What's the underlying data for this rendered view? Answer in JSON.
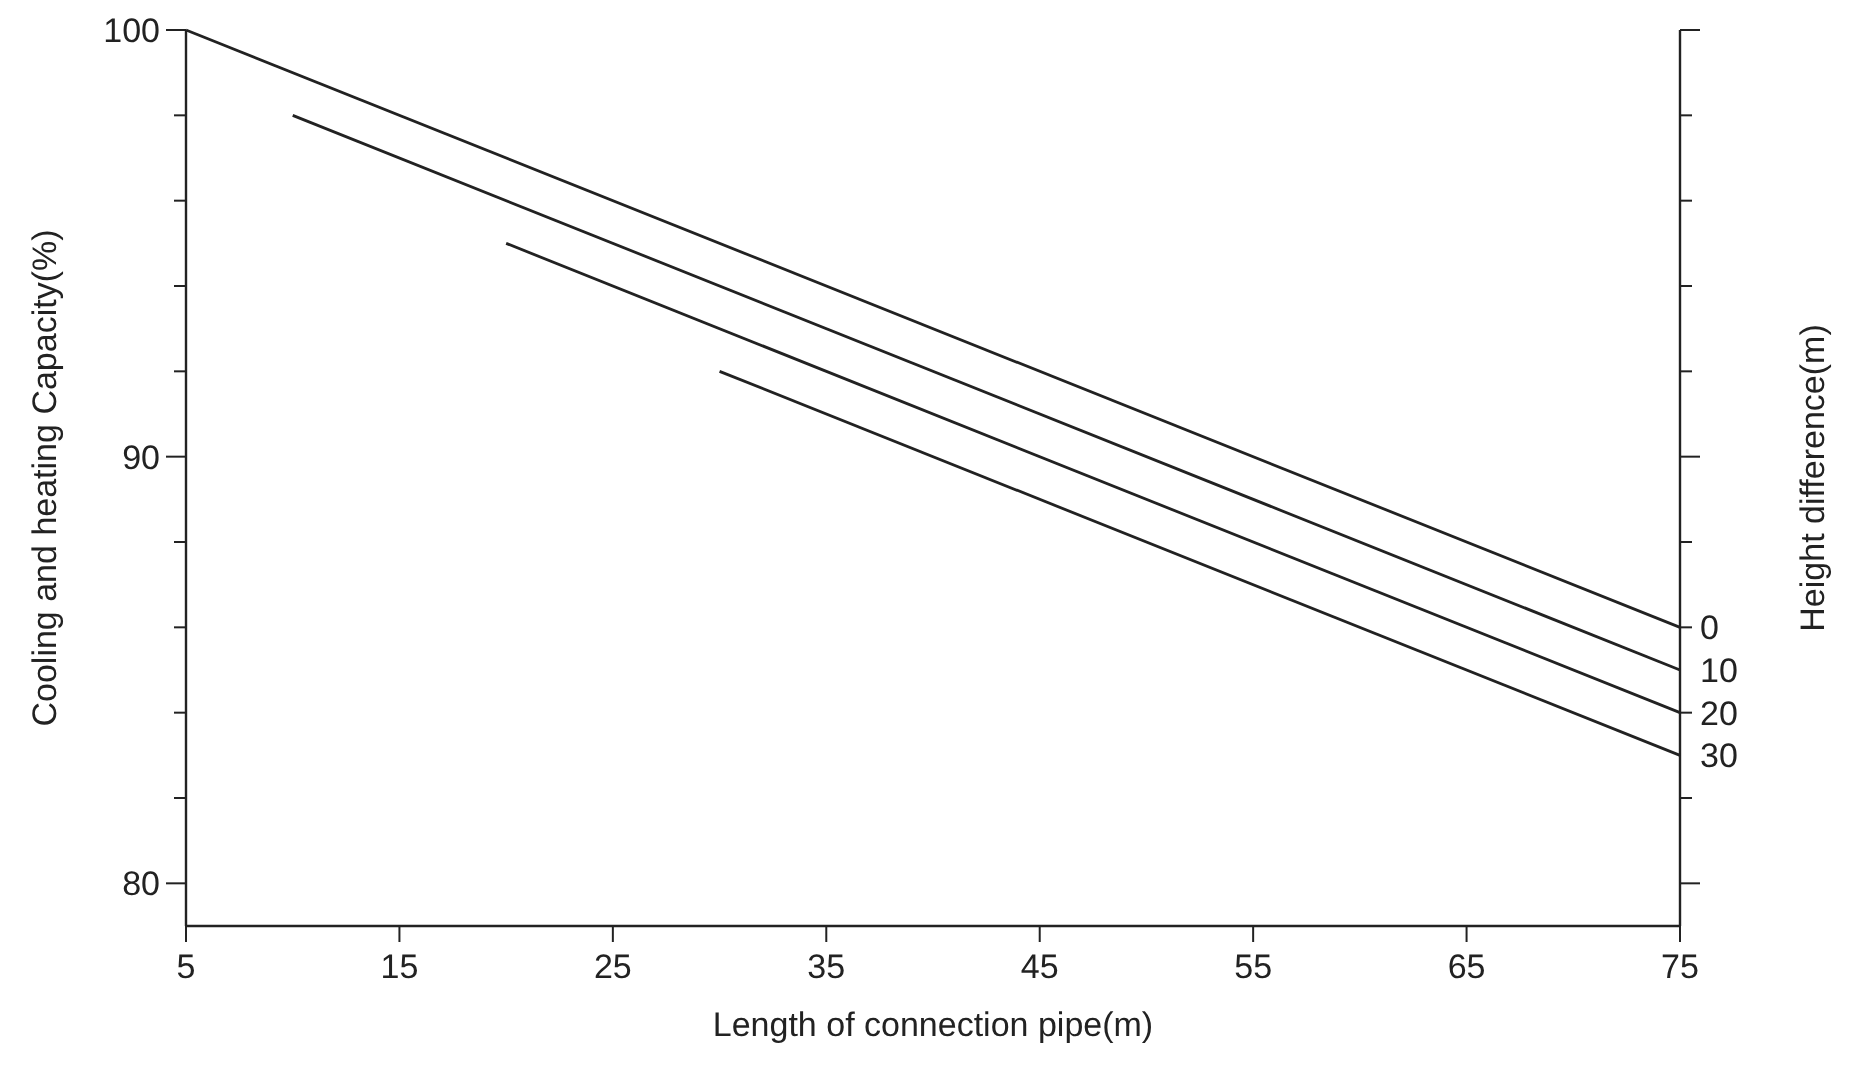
{
  "chart_data": {
    "type": "line",
    "xlabel": "Length of connection pipe(m)",
    "ylabel": "Cooling and heating Capacity(%)",
    "y2label": "Height difference(m)",
    "xlim": [
      5,
      75
    ],
    "xticks": [
      5,
      15,
      25,
      35,
      45,
      55,
      65,
      75
    ],
    "ylim": [
      79,
      100
    ],
    "yticks": [
      {
        "value": 80,
        "label": "80"
      },
      {
        "value": 82,
        "label": null
      },
      {
        "value": 84,
        "label": null
      },
      {
        "value": 86,
        "label": null
      },
      {
        "value": 88,
        "label": null
      },
      {
        "value": 90,
        "label": "90"
      },
      {
        "value": 92,
        "label": null
      },
      {
        "value": 94,
        "label": null
      },
      {
        "value": 96,
        "label": null
      },
      {
        "value": 98,
        "label": null
      },
      {
        "value": 100,
        "label": "100"
      }
    ],
    "grid": false,
    "legend": "right",
    "marker": "none",
    "line_style": "solid",
    "series": [
      {
        "name": "0",
        "color": "#222222",
        "x": [
          5,
          75
        ],
        "values": [
          100,
          86
        ]
      },
      {
        "name": "10",
        "color": "#222222",
        "x": [
          10,
          75
        ],
        "values": [
          98,
          85
        ]
      },
      {
        "name": "20",
        "color": "#222222",
        "x": [
          20,
          75
        ],
        "values": [
          95,
          84
        ]
      },
      {
        "name": "30",
        "color": "#222222",
        "x": [
          30,
          75
        ],
        "values": [
          92,
          83
        ]
      }
    ]
  }
}
